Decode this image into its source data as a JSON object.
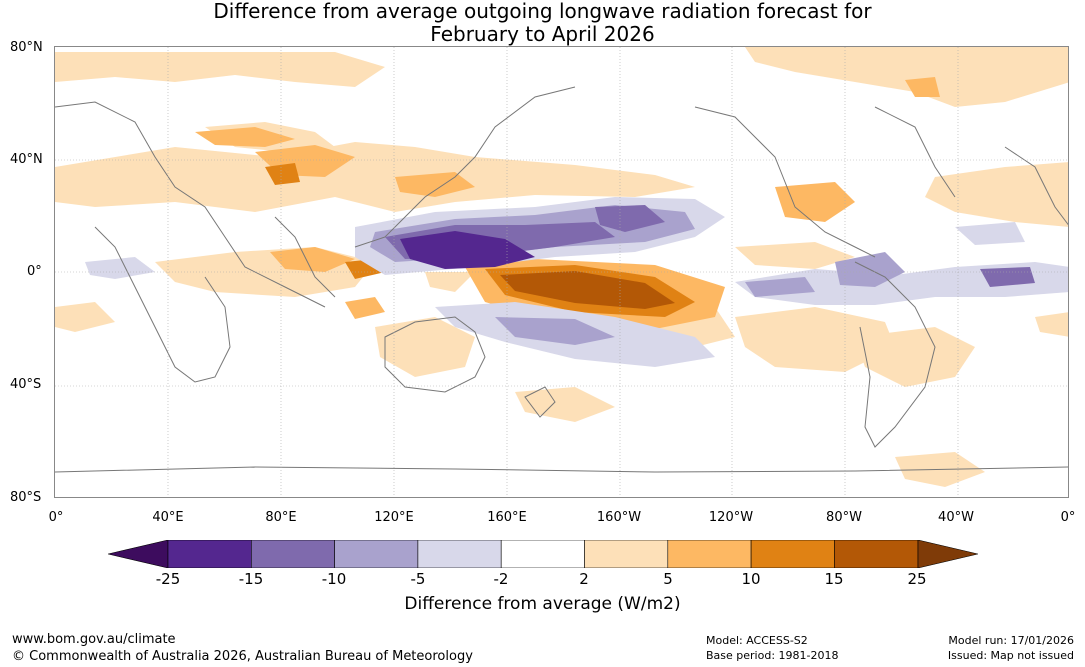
{
  "title": {
    "line1": "Difference from average outgoing longwave radiation forecast for",
    "line2": "February to April 2026"
  },
  "map": {
    "lat_labels": [
      "80°N",
      "40°N",
      "0°",
      "40°S",
      "80°S"
    ],
    "lon_labels": [
      "0°",
      "40°E",
      "80°E",
      "120°E",
      "160°E",
      "160°W",
      "120°W",
      "80°W",
      "40°W",
      "0°"
    ],
    "ocean_color": "#ffffff",
    "coast_color": "#777777"
  },
  "colorbar": {
    "ticks": [
      "-25",
      "-15",
      "-10",
      "-5",
      "-2",
      "2",
      "5",
      "10",
      "15",
      "25"
    ],
    "colors": [
      "#3d0c5e",
      "#54278f",
      "#7f6aad",
      "#a9a2cd",
      "#d8d8ea",
      "#ffffff",
      "#fde0b8",
      "#fdb863",
      "#e08214",
      "#b35806",
      "#7f3b08"
    ],
    "label": "Difference from average (W/m2)"
  },
  "footer": {
    "url": "www.bom.gov.au/climate",
    "copyright": "© Commonwealth of Australia 2026, Australian Bureau of Meteorology",
    "model": "Model: ACCESS-S2",
    "base_period": "Base period: 1981-2018",
    "model_run": "Model run: 17/01/2026",
    "issued": "Issued: Map not issued"
  }
}
